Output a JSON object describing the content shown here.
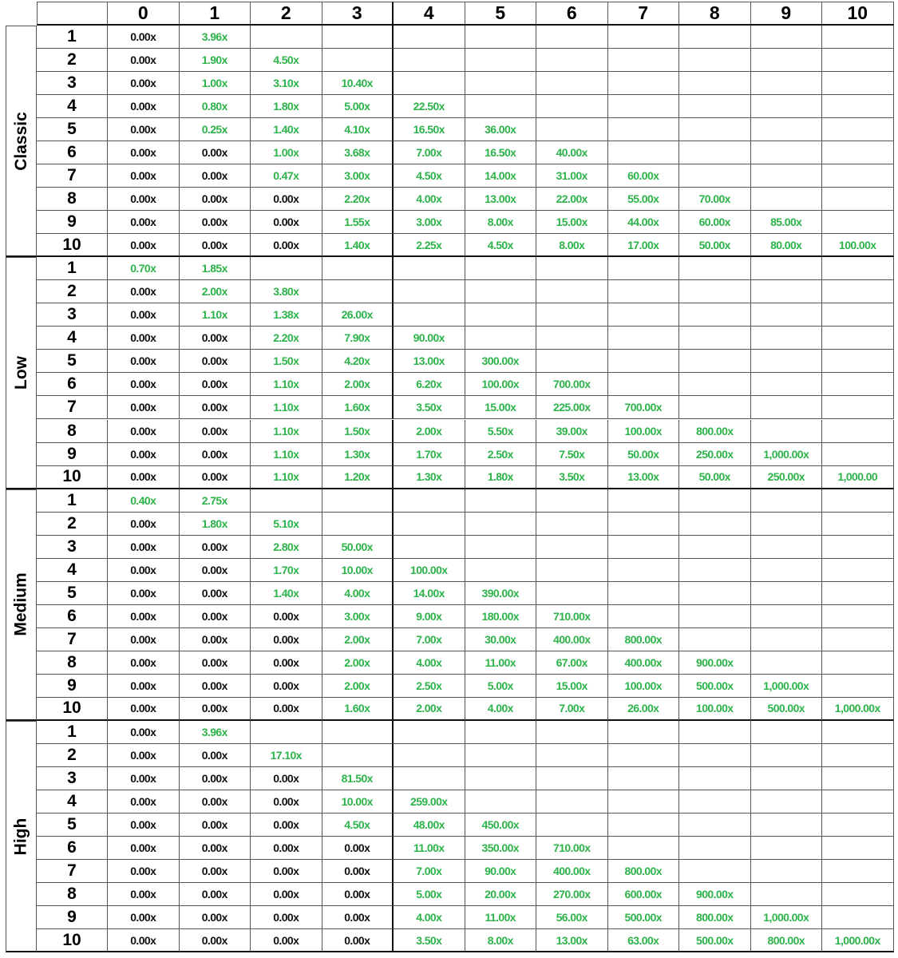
{
  "colors": {
    "zero": "#111111",
    "positive": "#2eb34b"
  },
  "headers": [
    "0",
    "1",
    "2",
    "3",
    "4",
    "5",
    "6",
    "7",
    "8",
    "9",
    "10"
  ],
  "groups": [
    {
      "name": "Classic",
      "rows": [
        [
          "0.00x",
          "3.96x"
        ],
        [
          "0.00x",
          "1.90x",
          "4.50x"
        ],
        [
          "0.00x",
          "1.00x",
          "3.10x",
          "10.40x"
        ],
        [
          "0.00x",
          "0.80x",
          "1.80x",
          "5.00x",
          "22.50x"
        ],
        [
          "0.00x",
          "0.25x",
          "1.40x",
          "4.10x",
          "16.50x",
          "36.00x"
        ],
        [
          "0.00x",
          "0.00x",
          "1.00x",
          "3.68x",
          "7.00x",
          "16.50x",
          "40.00x"
        ],
        [
          "0.00x",
          "0.00x",
          "0.47x",
          "3.00x",
          "4.50x",
          "14.00x",
          "31.00x",
          "60.00x"
        ],
        [
          "0.00x",
          "0.00x",
          "0.00x",
          "2.20x",
          "4.00x",
          "13.00x",
          "22.00x",
          "55.00x",
          "70.00x"
        ],
        [
          "0.00x",
          "0.00x",
          "0.00x",
          "1.55x",
          "3.00x",
          "8.00x",
          "15.00x",
          "44.00x",
          "60.00x",
          "85.00x"
        ],
        [
          "0.00x",
          "0.00x",
          "0.00x",
          "1.40x",
          "2.25x",
          "4.50x",
          "8.00x",
          "17.00x",
          "50.00x",
          "80.00x",
          "100.00x"
        ]
      ]
    },
    {
      "name": "Low",
      "rows": [
        [
          "0.70x",
          "1.85x"
        ],
        [
          "0.00x",
          "2.00x",
          "3.80x"
        ],
        [
          "0.00x",
          "1.10x",
          "1.38x",
          "26.00x"
        ],
        [
          "0.00x",
          "0.00x",
          "2.20x",
          "7.90x",
          "90.00x"
        ],
        [
          "0.00x",
          "0.00x",
          "1.50x",
          "4.20x",
          "13.00x",
          "300.00x"
        ],
        [
          "0.00x",
          "0.00x",
          "1.10x",
          "2.00x",
          "6.20x",
          "100.00x",
          "700.00x"
        ],
        [
          "0.00x",
          "0.00x",
          "1.10x",
          "1.60x",
          "3.50x",
          "15.00x",
          "225.00x",
          "700.00x"
        ],
        [
          "0.00x",
          "0.00x",
          "1.10x",
          "1.50x",
          "2.00x",
          "5.50x",
          "39.00x",
          "100.00x",
          "800.00x"
        ],
        [
          "0.00x",
          "0.00x",
          "1.10x",
          "1.30x",
          "1.70x",
          "2.50x",
          "7.50x",
          "50.00x",
          "250.00x",
          "1,000.00x"
        ],
        [
          "0.00x",
          "0.00x",
          "1.10x",
          "1.20x",
          "1.30x",
          "1.80x",
          "3.50x",
          "13.00x",
          "50.00x",
          "250.00x",
          "1,000.00"
        ]
      ]
    },
    {
      "name": "Medium",
      "rows": [
        [
          "0.40x",
          "2.75x"
        ],
        [
          "0.00x",
          "1.80x",
          "5.10x"
        ],
        [
          "0.00x",
          "0.00x",
          "2.80x",
          "50.00x"
        ],
        [
          "0.00x",
          "0.00x",
          "1.70x",
          "10.00x",
          "100.00x"
        ],
        [
          "0.00x",
          "0.00x",
          "1.40x",
          "4.00x",
          "14.00x",
          "390.00x"
        ],
        [
          "0.00x",
          "0.00x",
          "0.00x",
          "3.00x",
          "9.00x",
          "180.00x",
          "710.00x"
        ],
        [
          "0.00x",
          "0.00x",
          "0.00x",
          "2.00x",
          "7.00x",
          "30.00x",
          "400.00x",
          "800.00x"
        ],
        [
          "0.00x",
          "0.00x",
          "0.00x",
          "2.00x",
          "4.00x",
          "11.00x",
          "67.00x",
          "400.00x",
          "900.00x"
        ],
        [
          "0.00x",
          "0.00x",
          "0.00x",
          "2.00x",
          "2.50x",
          "5.00x",
          "15.00x",
          "100.00x",
          "500.00x",
          "1,000.00x"
        ],
        [
          "0.00x",
          "0.00x",
          "0.00x",
          "1.60x",
          "2.00x",
          "4.00x",
          "7.00x",
          "26.00x",
          "100.00x",
          "500.00x",
          "1,000.00x"
        ]
      ]
    },
    {
      "name": "High",
      "rows": [
        [
          "0.00x",
          "3.96x"
        ],
        [
          "0.00x",
          "0.00x",
          "17.10x"
        ],
        [
          "0.00x",
          "0.00x",
          "0.00x",
          "81.50x"
        ],
        [
          "0.00x",
          "0.00x",
          "0.00x",
          "10.00x",
          "259.00x"
        ],
        [
          "0.00x",
          "0.00x",
          "0.00x",
          "4.50x",
          "48.00x",
          "450.00x"
        ],
        [
          "0.00x",
          "0.00x",
          "0.00x",
          "0.00x",
          "11.00x",
          "350.00x",
          "710.00x"
        ],
        [
          "0.00x",
          "0.00x",
          "0.00x",
          "0.00x",
          "7.00x",
          "90.00x",
          "400.00x",
          "800.00x"
        ],
        [
          "0.00x",
          "0.00x",
          "0.00x",
          "0.00x",
          "5.00x",
          "20.00x",
          "270.00x",
          "600.00x",
          "900.00x"
        ],
        [
          "0.00x",
          "0.00x",
          "0.00x",
          "0.00x",
          "4.00x",
          "11.00x",
          "56.00x",
          "500.00x",
          "800.00x",
          "1,000.00x"
        ],
        [
          "0.00x",
          "0.00x",
          "0.00x",
          "0.00x",
          "3.50x",
          "8.00x",
          "13.00x",
          "63.00x",
          "500.00x",
          "800.00x",
          "1,000.00x"
        ]
      ]
    }
  ]
}
